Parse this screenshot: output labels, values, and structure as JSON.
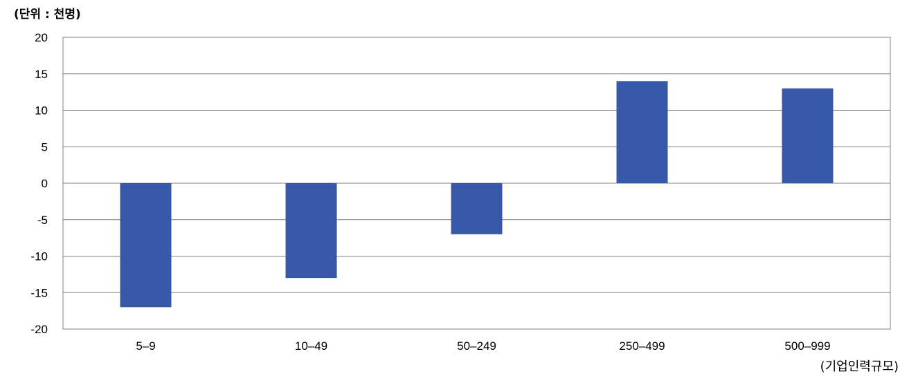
{
  "chart_data": {
    "type": "bar",
    "unit_label": "(단위 : 천명)",
    "xlabel": "(기업인력규모)",
    "categories": [
      "5–9",
      "10–49",
      "50–249",
      "250–499",
      "500–999"
    ],
    "values": [
      -17,
      -13,
      -7,
      14,
      13
    ],
    "ylim": [
      -20,
      20
    ],
    "yticks": [
      20,
      15,
      10,
      5,
      0,
      -5,
      -10,
      -15,
      -20
    ],
    "grid": true,
    "legend": "none",
    "bar_color": "#3857a6",
    "grid_color": "#808080"
  }
}
